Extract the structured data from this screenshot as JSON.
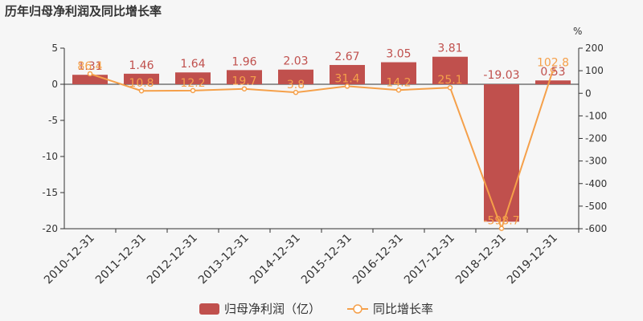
{
  "chart_data": {
    "type": "bar",
    "title": "历年归母净利润及同比增长率",
    "categories": [
      "2010-12-31",
      "2011-12-31",
      "2012-12-31",
      "2013-12-31",
      "2014-12-31",
      "2015-12-31",
      "2016-12-31",
      "2017-12-31",
      "2018-12-31",
      "2019-12-31"
    ],
    "series": [
      {
        "name": "归母净利润（亿）",
        "type": "bar",
        "axis": "left",
        "color": "#c0504d",
        "values": [
          1.31,
          1.46,
          1.64,
          1.96,
          2.03,
          2.67,
          3.05,
          3.81,
          -19.03,
          0.53
        ],
        "labels": [
          "1.31",
          "1.46",
          "1.64",
          "1.96",
          "2.03",
          "2.67",
          "3.05",
          "3.81",
          "-19.03",
          "0.53"
        ]
      },
      {
        "name": "同比增长率",
        "type": "line",
        "axis": "right",
        "color": "#f5a04a",
        "values": [
          86.4,
          10.8,
          12.2,
          19.7,
          3.8,
          31.4,
          14.2,
          25.1,
          -598.7,
          102.8
        ],
        "labels": [
          "86.4",
          "10.8",
          "12.2",
          "19.7",
          "3.8",
          "31.4",
          "14.2",
          "25.1",
          "-598.7",
          "102.8"
        ]
      }
    ],
    "y_left": {
      "min": -20,
      "max": 5,
      "ticks": [
        5,
        0,
        -5,
        -10,
        -15,
        -20
      ]
    },
    "y_right": {
      "min": -600,
      "max": 200,
      "unit": "%",
      "ticks": [
        200,
        100,
        0,
        -100,
        -200,
        -300,
        -400,
        -500,
        -600
      ]
    },
    "grid": false,
    "legend_position": "bottom-center"
  }
}
